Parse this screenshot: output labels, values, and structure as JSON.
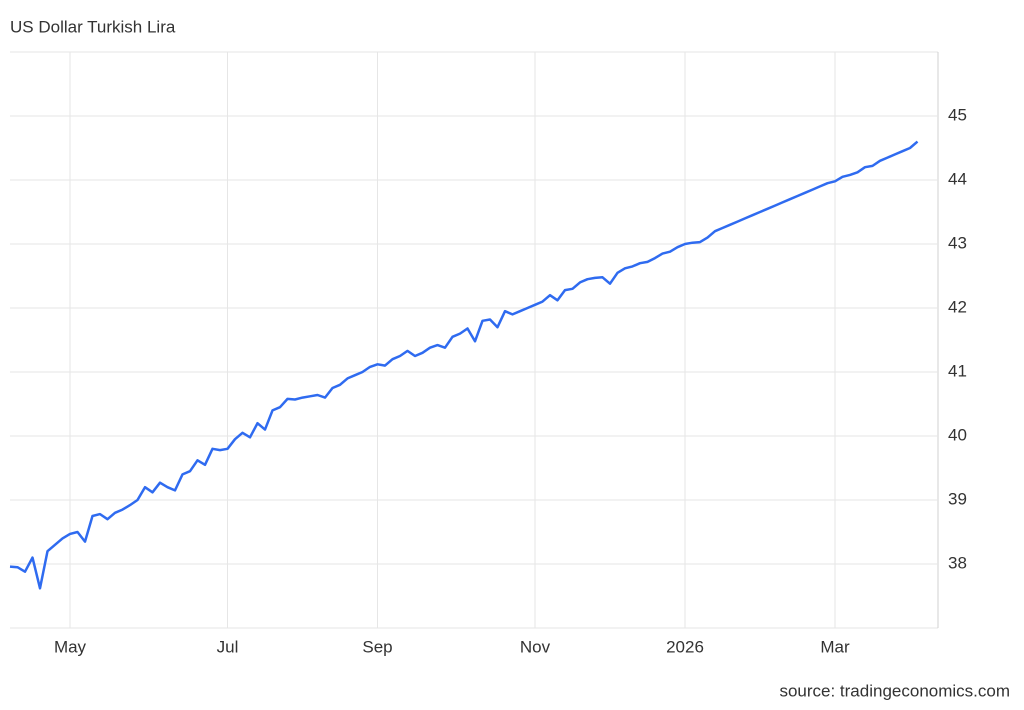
{
  "chart_data": {
    "type": "line",
    "title": "US Dollar Turkish Lira",
    "source": "source: tradingeconomics.com",
    "categories": [
      null,
      null,
      null,
      null,
      null,
      null,
      null,
      null,
      "May",
      null,
      null,
      null,
      null,
      null,
      null,
      null,
      null,
      null,
      null,
      null,
      null,
      null,
      null,
      null,
      null,
      null,
      null,
      null,
      null,
      "Jul",
      null,
      null,
      null,
      null,
      null,
      null,
      null,
      null,
      null,
      null,
      null,
      null,
      null,
      null,
      null,
      null,
      null,
      null,
      null,
      "Sep",
      null,
      null,
      null,
      null,
      null,
      null,
      null,
      null,
      null,
      null,
      null,
      null,
      null,
      null,
      null,
      null,
      null,
      null,
      null,
      null,
      "Nov",
      null,
      null,
      null,
      null,
      null,
      null,
      null,
      null,
      null,
      null,
      null,
      null,
      null,
      null,
      null,
      null,
      null,
      null,
      null,
      "2026",
      null,
      null,
      null,
      null,
      null,
      null,
      null,
      null,
      null,
      null,
      null,
      null,
      null,
      null,
      null,
      null,
      null,
      null,
      null,
      "Mar",
      null,
      null,
      null,
      null,
      null,
      null,
      null,
      null,
      null,
      null,
      null
    ],
    "values": [
      37.96,
      37.95,
      37.88,
      38.1,
      37.62,
      38.2,
      38.3,
      38.4,
      38.47,
      38.5,
      38.35,
      38.75,
      38.78,
      38.7,
      38.8,
      38.85,
      38.92,
      39.0,
      39.2,
      39.12,
      39.27,
      39.2,
      39.15,
      39.4,
      39.45,
      39.62,
      39.55,
      39.8,
      39.78,
      39.8,
      39.95,
      40.05,
      39.98,
      40.2,
      40.1,
      40.4,
      40.45,
      40.58,
      40.57,
      40.6,
      40.62,
      40.64,
      40.6,
      40.75,
      40.8,
      40.9,
      40.95,
      41.0,
      41.08,
      41.12,
      41.1,
      41.2,
      41.25,
      41.33,
      41.25,
      41.3,
      41.38,
      41.42,
      41.38,
      41.55,
      41.6,
      41.68,
      41.48,
      41.8,
      41.82,
      41.7,
      41.95,
      41.9,
      41.95,
      42.0,
      42.05,
      42.1,
      42.2,
      42.12,
      42.28,
      42.3,
      42.4,
      42.45,
      42.47,
      42.48,
      42.38,
      42.55,
      42.62,
      42.65,
      42.7,
      42.72,
      42.78,
      42.85,
      42.88,
      42.95,
      43.0,
      43.02,
      43.03,
      43.1,
      43.2,
      43.25,
      43.3,
      43.35,
      43.4,
      43.45,
      43.5,
      43.55,
      43.6,
      43.65,
      43.7,
      43.75,
      43.8,
      43.85,
      43.9,
      43.95,
      43.98,
      44.05,
      44.08,
      44.12,
      44.2,
      44.22,
      44.3,
      44.35,
      44.4,
      44.45,
      44.5,
      44.6
    ],
    "color": "#2f6bf0",
    "ylim": [
      37,
      46
    ],
    "yticks": [
      38,
      39,
      40,
      41,
      42,
      43,
      44,
      45
    ],
    "grid": true
  }
}
